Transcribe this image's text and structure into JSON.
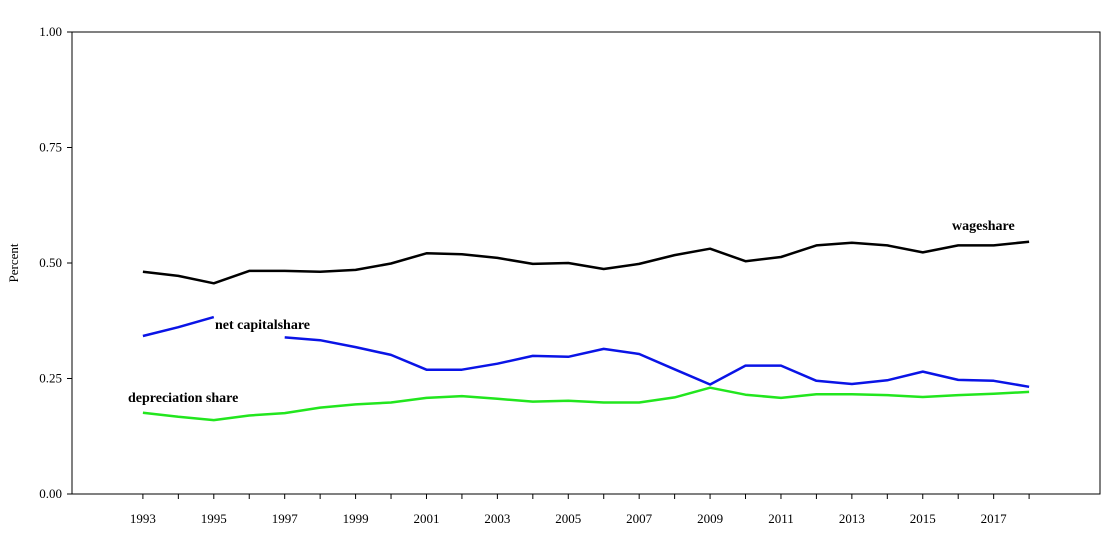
{
  "chart_data": {
    "type": "line",
    "title": "",
    "xlabel": "",
    "ylabel": "Percent",
    "xlim": [
      1991,
      2020
    ],
    "ylim": [
      0,
      1
    ],
    "y_ticks": [
      "0.00",
      "0.25",
      "0.50",
      "0.75",
      "1.00"
    ],
    "y_tick_values": [
      0,
      0.25,
      0.5,
      0.75,
      1.0
    ],
    "x_ticks": [
      "1993",
      "1995",
      "1997",
      "1999",
      "2001",
      "2003",
      "2005",
      "2007",
      "2009",
      "2011",
      "2013",
      "2015",
      "2017"
    ],
    "x_tick_values": [
      1993,
      1995,
      1997,
      1999,
      2001,
      2003,
      2005,
      2007,
      2009,
      2011,
      2013,
      2015,
      2017
    ],
    "grid": false,
    "legend": "none (labels placed inline next to lines)",
    "x": [
      1993,
      1994,
      1995,
      1996,
      1997,
      1998,
      1999,
      2000,
      2001,
      2002,
      2003,
      2004,
      2005,
      2006,
      2007,
      2008,
      2009,
      2010,
      2011,
      2012,
      2013,
      2014,
      2015,
      2016,
      2017,
      2018
    ],
    "series": [
      {
        "name": "wageshare",
        "color": "#000000",
        "values": [
          0.481,
          0.472,
          0.456,
          0.483,
          0.483,
          0.481,
          0.485,
          0.499,
          0.521,
          0.519,
          0.511,
          0.498,
          0.5,
          0.487,
          0.498,
          0.517,
          0.531,
          0.504,
          0.513,
          0.538,
          0.544,
          0.538,
          0.523,
          0.538,
          0.538,
          0.546
        ]
      },
      {
        "name": "net capitalshare",
        "color": "#0a14e6",
        "values": [
          0.342,
          0.361,
          0.383,
          null,
          0.339,
          0.333,
          0.318,
          0.301,
          0.269,
          0.269,
          0.282,
          0.299,
          0.297,
          0.314,
          0.303,
          0.27,
          0.237,
          0.278,
          0.278,
          0.245,
          0.238,
          0.246,
          0.265,
          0.247,
          0.245,
          0.232
        ]
      },
      {
        "name": "depreciation share",
        "color": "#22e61e",
        "values": [
          0.176,
          0.167,
          0.16,
          0.17,
          0.175,
          0.187,
          0.194,
          0.198,
          0.208,
          0.212,
          0.206,
          0.2,
          0.202,
          0.198,
          0.198,
          0.209,
          0.23,
          0.215,
          0.208,
          0.216,
          0.216,
          0.214,
          0.21,
          0.214,
          0.217,
          0.221
        ]
      }
    ]
  }
}
